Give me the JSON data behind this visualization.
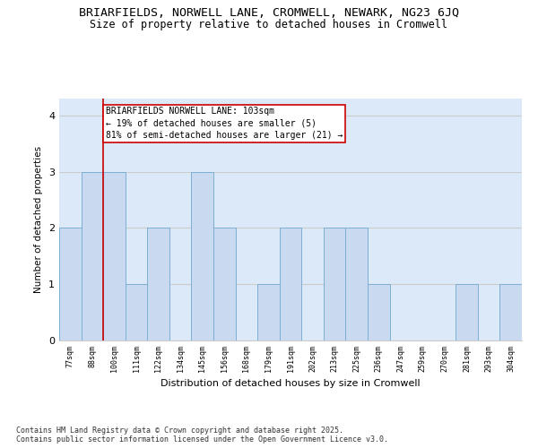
{
  "title1": "BRIARFIELDS, NORWELL LANE, CROMWELL, NEWARK, NG23 6JQ",
  "title2": "Size of property relative to detached houses in Cromwell",
  "xlabel": "Distribution of detached houses by size in Cromwell",
  "ylabel": "Number of detached properties",
  "categories": [
    "77sqm",
    "88sqm",
    "100sqm",
    "111sqm",
    "122sqm",
    "134sqm",
    "145sqm",
    "156sqm",
    "168sqm",
    "179sqm",
    "191sqm",
    "202sqm",
    "213sqm",
    "225sqm",
    "236sqm",
    "247sqm",
    "259sqm",
    "270sqm",
    "281sqm",
    "293sqm",
    "304sqm"
  ],
  "values": [
    2,
    3,
    3,
    1,
    2,
    0,
    3,
    2,
    0,
    1,
    2,
    0,
    2,
    2,
    1,
    0,
    0,
    0,
    1,
    0,
    1
  ],
  "bar_color": "#c9d9f0",
  "bar_edge_color": "#7bafd4",
  "grid_color": "#cccccc",
  "bg_color": "#dce9f8",
  "vline_color": "#cc0000",
  "annotation_text": "BRIARFIELDS NORWELL LANE: 103sqm\n← 19% of detached houses are smaller (5)\n81% of semi-detached houses are larger (21) →",
  "annotation_box_color": "#cc0000",
  "ylim": [
    0,
    4.3
  ],
  "yticks": [
    0,
    1,
    2,
    3,
    4
  ],
  "footer": "Contains HM Land Registry data © Crown copyright and database right 2025.\nContains public sector information licensed under the Open Government Licence v3.0.",
  "title1_fontsize": 9.5,
  "title2_fontsize": 8.5,
  "annotation_fontsize": 7,
  "footer_fontsize": 6,
  "ylabel_fontsize": 7.5,
  "xlabel_fontsize": 8,
  "ytick_fontsize": 8,
  "xtick_fontsize": 6
}
